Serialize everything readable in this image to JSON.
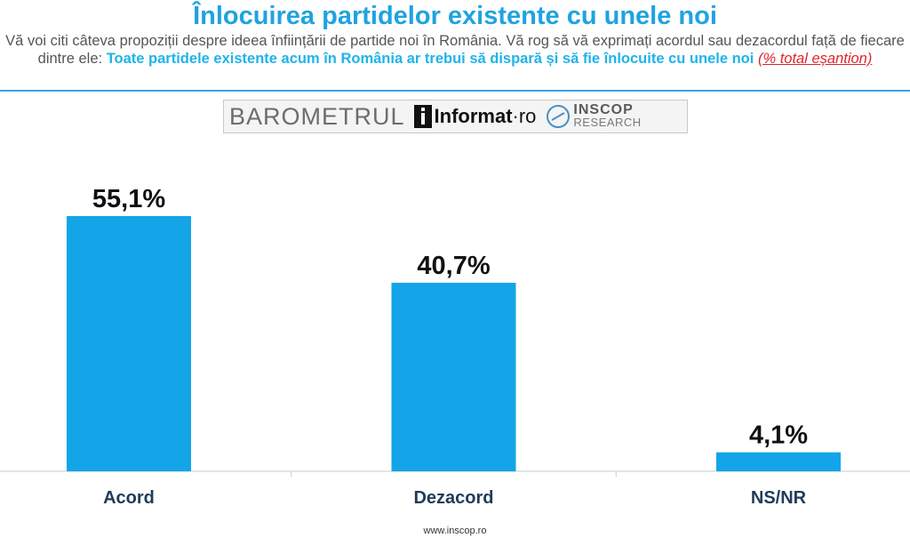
{
  "header": {
    "title": "Înlocuirea partidelor existente cu unele noi",
    "subtitle_lead": "Vă voi citi câteva propoziții despre ideea înființării de partide noi în România. Vă rog să vă exprimați acordul sau dezacordul față de fiecare dintre ele: ",
    "subtitle_highlight": "Toate partidele existente acum în România ar trebui să dispară și să fie înlocuite cu unele noi",
    "subtitle_note": "(% total eșantion)"
  },
  "logo": {
    "barometer": "BAROMETRUL",
    "informat": "Informat",
    "informat_suffix": "·ro",
    "inscop": "INSCOP",
    "inscop_sub": "RESEARCH"
  },
  "colors": {
    "bar": "#13a5e8",
    "title": "#1fa3e0",
    "label": "#1f3b5a"
  },
  "chart_data": {
    "type": "bar",
    "title": "Înlocuirea partidelor existente cu unele noi",
    "categories": [
      "Acord",
      "Dezacord",
      "NS/NR"
    ],
    "values": [
      55.1,
      40.7,
      4.1
    ],
    "value_labels": [
      "55,1%",
      "40,7%",
      "4,1%"
    ],
    "xlabel": "",
    "ylabel": "",
    "ylim": [
      0,
      100
    ],
    "grid": false,
    "legend": "none"
  },
  "footer": {
    "url": "www.inscop.ro"
  }
}
